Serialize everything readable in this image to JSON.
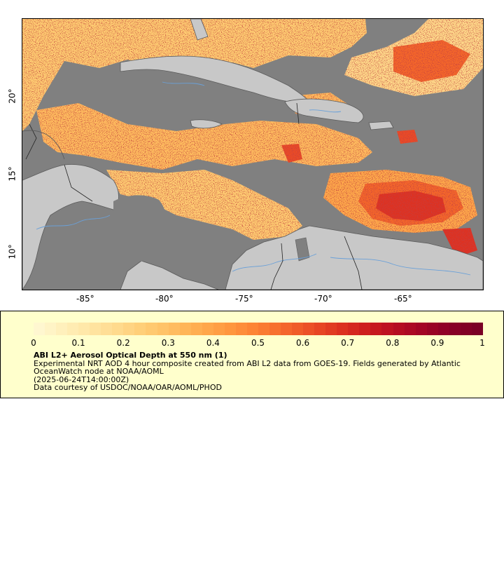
{
  "map": {
    "x_ticks": [
      "-85°",
      "-80°",
      "-75°",
      "-70°",
      "-65°"
    ],
    "y_ticks": [
      "20°",
      "15°",
      "10°"
    ],
    "colors": {
      "ocean_nodata": "#808080",
      "land": "#c8c8c8",
      "borders": "#5a5a5a",
      "rivers": "#6aa0d8"
    }
  },
  "legend": {
    "colorbar_labels": [
      "0",
      "0.1",
      "0.2",
      "0.3",
      "0.4",
      "0.5",
      "0.6",
      "0.7",
      "0.8",
      "0.9",
      "1"
    ],
    "title": "ABI L2+ Aerosol Optical Depth at 550 nm (1)",
    "description_line1": "Experimental NRT AOD 4 hour composite created from ABI L2 data from GOES-19. Fields generated by Atlantic",
    "description_line2": "OceanWatch node at NOAA/AOML",
    "time": "(2025-06-24T14:00:00Z)",
    "credit": "Data courtesy of USDOC/NOAA/OAR/AOML/PHOD",
    "colorscale": [
      "#fff7d0",
      "#ffefb8",
      "#ffe4a0",
      "#ffd88a",
      "#ffcb72",
      "#ffbb5e",
      "#ffa94c",
      "#ff963e",
      "#fc7f33",
      "#f4662c",
      "#ea4c26",
      "#dd3220",
      "#cc1c1e",
      "#b80e22",
      "#a20525",
      "#8a0026",
      "#7a0025"
    ]
  }
}
